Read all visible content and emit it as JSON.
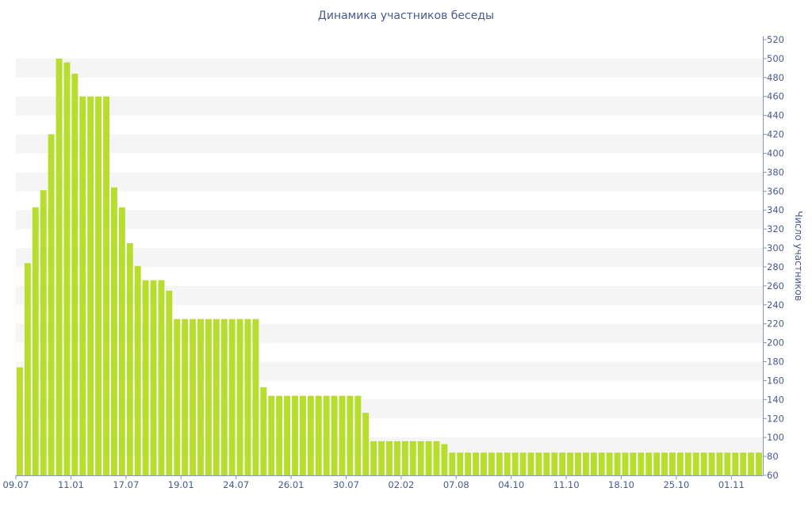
{
  "chart_data": {
    "type": "bar",
    "title": "Динамика участников беседы",
    "xlabel": "",
    "ylabel": "Число участников",
    "ylim": [
      60,
      520
    ],
    "y_ticks": [
      60,
      80,
      100,
      120,
      140,
      160,
      180,
      200,
      220,
      240,
      260,
      280,
      300,
      320,
      340,
      360,
      380,
      400,
      420,
      440,
      460,
      480,
      500,
      520
    ],
    "y_axis_side": "right",
    "grid": "horizontal bands",
    "bar_color": "#b9dd2e",
    "band_color": "#f5f5f5",
    "text_color": "#4a5a8e",
    "x_tick_labels": [
      "09.07",
      "11.01",
      "17.07",
      "19.01",
      "24.07",
      "26.01",
      "30.07",
      "02.02",
      "07.08",
      "04.10",
      "11.10",
      "18.10",
      "25.10",
      "01.11"
    ],
    "x_tick_bar_index": [
      0,
      7,
      14,
      21,
      28,
      35,
      42,
      49,
      56,
      63,
      70,
      77,
      84,
      91
    ],
    "values": [
      174,
      284,
      343,
      361,
      420,
      500,
      496,
      484,
      460,
      460,
      460,
      460,
      364,
      343,
      305,
      281,
      266,
      266,
      266,
      255,
      225,
      225,
      225,
      225,
      225,
      225,
      225,
      225,
      225,
      225,
      225,
      153,
      144,
      144,
      144,
      144,
      144,
      144,
      144,
      144,
      144,
      144,
      144,
      144,
      126,
      96,
      96,
      96,
      96,
      96,
      96,
      96,
      96,
      96,
      93,
      84,
      84,
      84,
      84,
      84,
      84,
      84,
      84,
      84,
      84,
      84,
      84,
      84,
      84,
      84,
      84,
      84,
      84,
      84,
      84,
      84,
      84,
      84,
      84,
      84,
      84,
      84,
      84,
      84,
      84,
      84,
      84,
      84,
      84,
      84,
      84,
      84,
      84,
      84,
      84
    ]
  }
}
